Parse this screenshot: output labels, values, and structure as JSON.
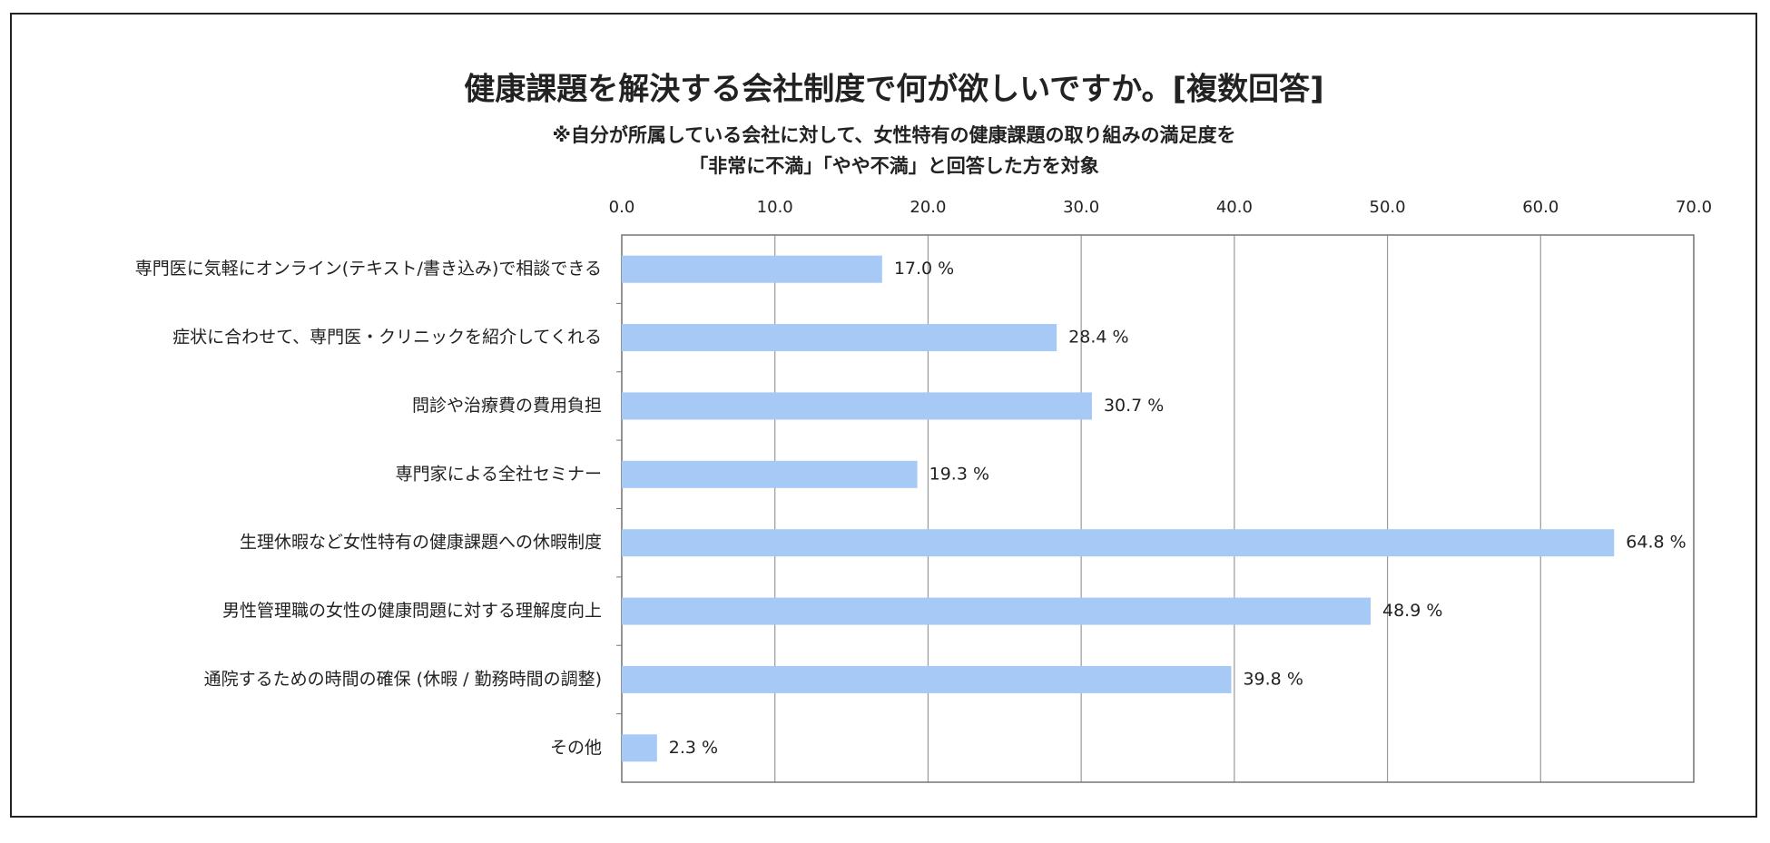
{
  "chart_data": {
    "type": "bar",
    "orientation": "horizontal",
    "title": "健康課題を解決する会社制度で何が欲しいですか。[複数回答]",
    "subtitle": [
      "※自分が所属している会社に対して、女性特有の健康課題の取り組みの満足度を",
      "「非常に不満」「やや不満」と回答した方を対象"
    ],
    "categories": [
      "専門医に気軽にオンライン(テキスト/書き込み)で相談できる",
      "症状に合わせて、専門医・クリニックを紹介してくれる",
      "問診や治療費の費用負担",
      "専門家による全社セミナー",
      "生理休暇など女性特有の健康課題への休暇制度",
      "男性管理職の女性の健康問題に対する理解度向上",
      "通院するための時間の確保 (休暇 / 勤務時間の調整)",
      "その他"
    ],
    "values": [
      17.0,
      28.4,
      30.7,
      19.3,
      64.8,
      48.9,
      39.8,
      2.3
    ],
    "value_labels": [
      "17.0 %",
      "28.4 %",
      "30.7 %",
      "19.3 %",
      "64.8 %",
      "48.9 %",
      "39.8 %",
      "2.3 %"
    ],
    "color": "#a6c9f5",
    "xlim": [
      0,
      70
    ],
    "xticks": [
      {
        "value": 0,
        "label": "0.0"
      },
      {
        "value": 10,
        "label": "10.0"
      },
      {
        "value": 20,
        "label": "20.0"
      },
      {
        "value": 30,
        "label": "30.0"
      },
      {
        "value": 40,
        "label": "40.0"
      },
      {
        "value": 50,
        "label": "50.0"
      },
      {
        "value": 60,
        "label": "60.0"
      },
      {
        "value": 70,
        "label": "70.0"
      }
    ],
    "grid": true
  }
}
